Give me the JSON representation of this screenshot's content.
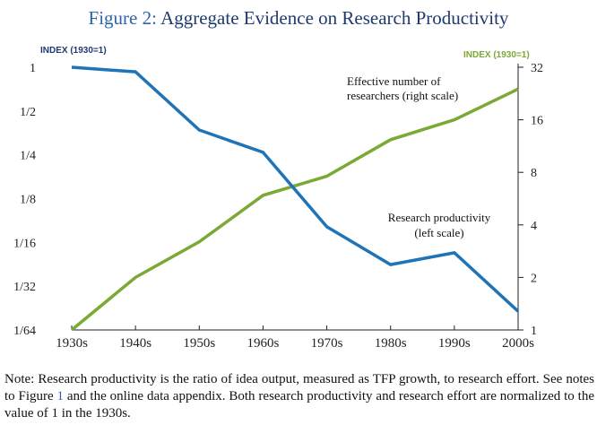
{
  "figure": {
    "label": "Figure 2:",
    "title": "Aggregate Evidence on Research Productivity"
  },
  "colors": {
    "productivity": "#1f74b8",
    "researchers": "#7aaa35",
    "left_header": "#1f3a70",
    "right_header": "#7aaa35"
  },
  "chart_data": {
    "type": "line",
    "title": "Aggregate Evidence on Research Productivity",
    "categories": [
      "1930s",
      "1940s",
      "1950s",
      "1960s",
      "1970s",
      "1980s",
      "1990s",
      "2000s"
    ],
    "left_axis": {
      "label": "INDEX (1930=1)",
      "scale": "log2",
      "ylim": [
        0.015625,
        1
      ],
      "ticks": [
        1,
        0.5,
        0.25,
        0.125,
        0.0625,
        0.03125,
        0.015625
      ],
      "tick_labels": [
        "1",
        "1/2",
        "1/4",
        "1/8",
        "1/16",
        "1/32",
        "1/64"
      ]
    },
    "right_axis": {
      "label": "INDEX (1930=1)",
      "scale": "log2",
      "ylim": [
        1,
        32
      ],
      "ticks": [
        32,
        16,
        8,
        4,
        2,
        1
      ],
      "tick_labels": [
        "32",
        "16",
        "8",
        "4",
        "2",
        "1"
      ]
    },
    "series": [
      {
        "name": "Research productivity (left scale)",
        "axis": "left",
        "values": [
          1.0,
          0.93,
          0.37,
          0.26,
          0.08,
          0.044,
          0.053,
          0.021
        ],
        "label_lines": [
          "Research productivity",
          "(left scale)"
        ]
      },
      {
        "name": "Effective number of researchers (right scale)",
        "axis": "right",
        "values": [
          1.0,
          2.0,
          3.2,
          5.9,
          7.6,
          12.3,
          16.0,
          24.0
        ],
        "label_lines": [
          "Effective number of",
          "researchers (right scale)"
        ]
      }
    ]
  },
  "note": {
    "part1": "Note: Research productivity is the ratio of idea output, measured as TFP growth, to research effort. See notes to Figure ",
    "ref": "1",
    "part2": " and the online data appendix. Both research productivity and research effort are normalized to the value of 1 in the 1930s."
  }
}
